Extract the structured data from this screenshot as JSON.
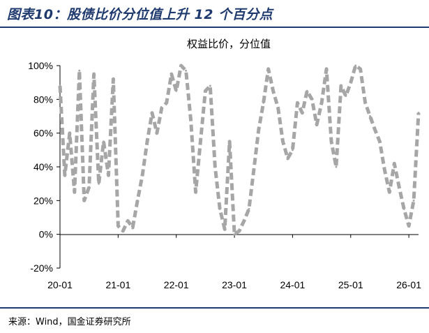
{
  "figure": {
    "title": "图表10：股债比价分位值上升 12 个百分点",
    "source": "来源：Wind，国金证券研究所"
  },
  "chart_data": {
    "type": "line",
    "title": "权益比价，分位值",
    "xlabel": "",
    "ylabel": "",
    "x_tick_labels": [
      "20-01",
      "21-01",
      "22-01",
      "23-01",
      "24-01",
      "25-01",
      "26-01"
    ],
    "y_tick_labels": [
      "-20%",
      "0%",
      "20%",
      "40%",
      "60%",
      "80%",
      "100%"
    ],
    "ylim": [
      -20,
      100
    ],
    "xlim": [
      "2020-01",
      "2026-03"
    ],
    "grid": false,
    "legend": "none",
    "series_style": {
      "color": "#a6a6a6",
      "dash": "dashed"
    },
    "series": [
      {
        "name": "权益比价，分位值",
        "unit": "%",
        "x": [
          "2020-01",
          "2020-02",
          "2020-03",
          "2020-04",
          "2020-05",
          "2020-06",
          "2020-07",
          "2020-08",
          "2020-09",
          "2020-10",
          "2020-11",
          "2020-12",
          "2021-01",
          "2021-02",
          "2021-03",
          "2021-04",
          "2021-05",
          "2021-06",
          "2021-07",
          "2021-08",
          "2021-09",
          "2021-10",
          "2021-11",
          "2021-12",
          "2022-01",
          "2022-02",
          "2022-03",
          "2022-04",
          "2022-05",
          "2022-06",
          "2022-07",
          "2022-08",
          "2022-09",
          "2022-10",
          "2022-11",
          "2022-12",
          "2023-01",
          "2023-02",
          "2023-03",
          "2023-04",
          "2023-05",
          "2023-06",
          "2023-07",
          "2023-08",
          "2023-09",
          "2023-10",
          "2023-11",
          "2023-12",
          "2024-01",
          "2024-02",
          "2024-03",
          "2024-04",
          "2024-05",
          "2024-06",
          "2024-07",
          "2024-08",
          "2024-09",
          "2024-10",
          "2024-11",
          "2024-12",
          "2025-01",
          "2025-02",
          "2025-03",
          "2025-04",
          "2025-05",
          "2025-06",
          "2025-07",
          "2025-08",
          "2025-09",
          "2025-10",
          "2025-11",
          "2025-12",
          "2026-01",
          "2026-02",
          "2026-03"
        ],
        "values": [
          88,
          35,
          60,
          25,
          97,
          20,
          28,
          95,
          30,
          55,
          35,
          92,
          5,
          2,
          8,
          4,
          20,
          35,
          55,
          72,
          60,
          75,
          78,
          95,
          85,
          100,
          97,
          68,
          25,
          55,
          85,
          88,
          40,
          15,
          3,
          55,
          0,
          2,
          8,
          15,
          38,
          62,
          78,
          98,
          85,
          75,
          55,
          45,
          50,
          78,
          72,
          85,
          80,
          65,
          78,
          98,
          55,
          40,
          88,
          82,
          90,
          100,
          98,
          78,
          70,
          62,
          55,
          38,
          25,
          42,
          28,
          15,
          5,
          20,
          72
        ]
      }
    ]
  }
}
